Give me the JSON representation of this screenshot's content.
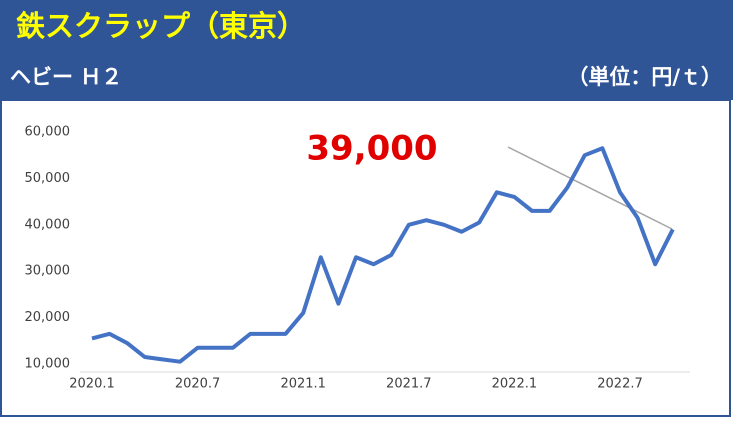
{
  "chart_data": {
    "type": "line",
    "title": "鉄スクラップ（東京）",
    "subtitle": "ヘビー Ｈ２",
    "unit": "（単位：円/ｔ）",
    "annotation": "39,000",
    "categories": [
      "2020.1",
      null,
      null,
      null,
      null,
      null,
      "2020.7",
      null,
      null,
      null,
      null,
      null,
      "2021.1",
      null,
      null,
      null,
      null,
      null,
      "2021.7",
      null,
      null,
      null,
      null,
      null,
      "2022.1",
      null,
      null,
      null,
      null,
      null,
      "2022.7",
      null,
      null,
      null
    ],
    "values": [
      15500,
      16500,
      14500,
      11500,
      11000,
      10500,
      13500,
      13500,
      13500,
      16500,
      16500,
      16500,
      21000,
      33000,
      23000,
      33000,
      31500,
      33500,
      40000,
      41000,
      40000,
      38500,
      40500,
      47000,
      46000,
      43000,
      43000,
      48000,
      55000,
      56500,
      47000,
      41500,
      31500,
      39000
    ],
    "color": "#4472c4",
    "ylim": [
      10000,
      60000
    ],
    "yticks": [
      {
        "value": 10000,
        "label": "10,000"
      },
      {
        "value": 20000,
        "label": "20,000"
      },
      {
        "value": 30000,
        "label": "30,000"
      },
      {
        "value": 40000,
        "label": "40,000"
      },
      {
        "value": 50000,
        "label": "50,000"
      },
      {
        "value": 60000,
        "label": "60,000"
      }
    ],
    "grid": false
  }
}
